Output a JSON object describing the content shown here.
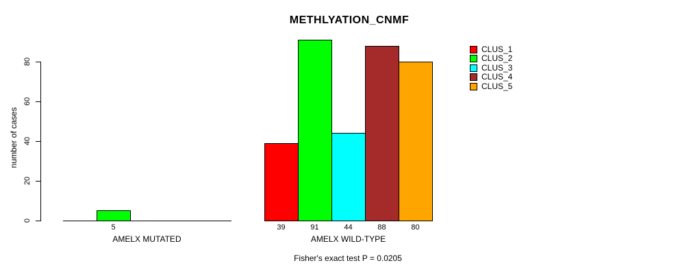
{
  "chart_data": {
    "type": "bar",
    "title": "METHLYATION_CNMF",
    "ylabel": "number of cases",
    "xlabel": "",
    "footnote": "Fisher's exact test P = 0.0205",
    "yticks": [
      0,
      20,
      40,
      60,
      80
    ],
    "ylim": [
      0,
      91
    ],
    "grid": false,
    "legend_position": "top-right",
    "series_names": [
      "CLUS_1",
      "CLUS_2",
      "CLUS_3",
      "CLUS_4",
      "CLUS_5"
    ],
    "series_colors": [
      "#ff0000",
      "#00ff00",
      "#00ffff",
      "#a52a2a",
      "#ffa500"
    ],
    "groups": [
      {
        "label": "AMELX MUTATED",
        "values": [
          0,
          5,
          0,
          0,
          0
        ]
      },
      {
        "label": "AMELX WILD-TYPE",
        "values": [
          39,
          91,
          44,
          88,
          80
        ]
      }
    ],
    "bar_value_labels": {
      "AMELX MUTATED": [
        "",
        "5",
        "",
        "",
        ""
      ],
      "AMELX WILD-TYPE": [
        "39",
        "91",
        "44",
        "88",
        "80"
      ]
    },
    "colors": {
      "background": "#ffffff",
      "axis": "#000000",
      "text": "#000000"
    }
  }
}
